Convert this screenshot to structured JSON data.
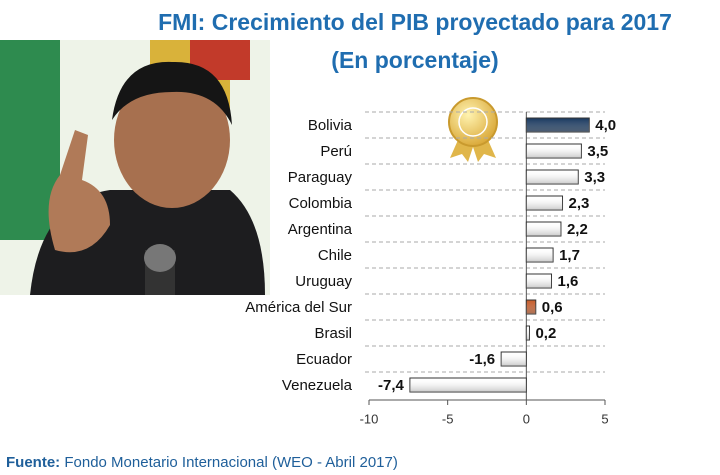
{
  "chart_data": {
    "type": "bar",
    "orientation": "horizontal",
    "title": "FMI: Crecimiento del PIB proyectado para 2017",
    "subtitle": "(En porcentaje)",
    "categories": [
      "Bolivia",
      "Perú",
      "Paraguay",
      "Colombia",
      "Argentina",
      "Chile",
      "Uruguay",
      "América del Sur",
      "Brasil",
      "Ecuador",
      "Venezuela"
    ],
    "values": [
      4.0,
      3.5,
      3.3,
      2.3,
      2.2,
      1.7,
      1.6,
      0.6,
      0.2,
      -1.6,
      -7.4
    ],
    "value_labels": [
      "4,0",
      "3,5",
      "3,3",
      "2,3",
      "2,2",
      "1,7",
      "1,6",
      "0,6",
      "0,2",
      "-1,6",
      "-7,4"
    ],
    "colors": [
      "#17375e",
      "#ffffff",
      "#ffffff",
      "#ffffff",
      "#ffffff",
      "#ffffff",
      "#ffffff",
      "#c55a28",
      "#ffffff",
      "#ffffff",
      "#ffffff"
    ],
    "xlim": [
      -10,
      5
    ],
    "xticks": [
      -10,
      -5,
      0,
      5
    ],
    "grid": true,
    "source_label": "Fuente:",
    "source": "Fondo Monetario Internacional (WEO - Abril 2017)"
  }
}
